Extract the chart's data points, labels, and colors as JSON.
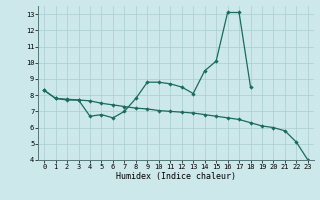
{
  "xlabel": "Humidex (Indice chaleur)",
  "bg_color": "#cce8ea",
  "line_color": "#1a6b5a",
  "grid_color": "#aacdd0",
  "x": [
    0,
    1,
    2,
    3,
    4,
    5,
    6,
    7,
    8,
    9,
    10,
    11,
    12,
    13,
    14,
    15,
    16,
    17,
    18,
    19,
    20,
    21,
    22,
    23
  ],
  "line1_x": [
    0,
    1,
    2,
    3,
    4,
    5,
    6,
    7,
    8,
    9,
    10,
    11,
    12,
    13,
    14,
    15,
    16,
    17,
    18
  ],
  "line1_y": [
    8.3,
    7.8,
    7.7,
    7.7,
    6.7,
    6.8,
    6.6,
    7.0,
    7.8,
    8.8,
    8.8,
    8.7,
    8.5,
    8.1,
    9.5,
    10.1,
    13.1,
    13.1,
    8.5
  ],
  "line2_x": [
    0,
    1,
    2,
    3,
    4,
    5,
    6,
    7,
    8,
    9,
    10,
    11,
    12,
    13,
    14,
    15,
    16,
    17,
    18,
    19,
    20,
    21,
    22,
    23
  ],
  "line2_y": [
    8.3,
    7.8,
    7.75,
    7.7,
    7.65,
    7.5,
    7.4,
    7.3,
    7.2,
    7.15,
    7.05,
    7.0,
    6.95,
    6.9,
    6.8,
    6.7,
    6.6,
    6.5,
    6.3,
    6.1,
    6.0,
    5.8,
    5.1,
    4.0
  ],
  "ylim": [
    4,
    13.5
  ],
  "xlim": [
    -0.5,
    23.5
  ],
  "yticks": [
    4,
    5,
    6,
    7,
    8,
    9,
    10,
    11,
    12,
    13
  ],
  "xticks": [
    0,
    1,
    2,
    3,
    4,
    5,
    6,
    7,
    8,
    9,
    10,
    11,
    12,
    13,
    14,
    15,
    16,
    17,
    18,
    19,
    20,
    21,
    22,
    23
  ]
}
